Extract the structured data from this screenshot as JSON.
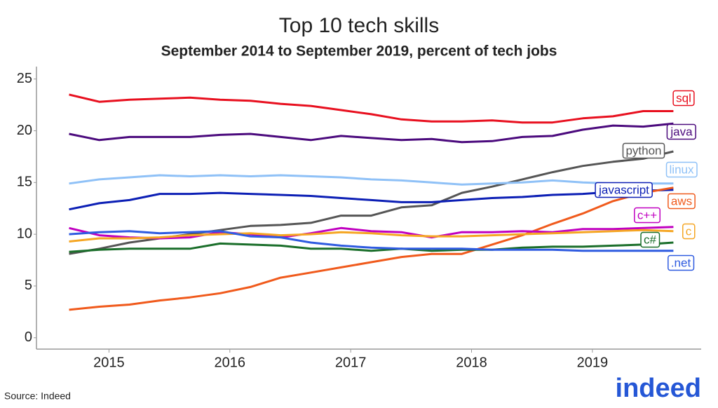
{
  "chart_data": {
    "type": "line",
    "title": "Top 10 tech skills",
    "subtitle": "September 2014 to September 2019, percent of tech jobs",
    "source": "Source: Indeed",
    "logo": "indeed",
    "x": [
      2014.67,
      2014.92,
      2015.17,
      2015.42,
      2015.67,
      2015.92,
      2016.17,
      2016.42,
      2016.67,
      2016.92,
      2017.17,
      2017.42,
      2017.67,
      2017.92,
      2018.17,
      2018.42,
      2018.67,
      2018.92,
      2019.17,
      2019.42,
      2019.67
    ],
    "xlim": [
      2014.4,
      2019.9
    ],
    "xticks": [
      2015,
      2016,
      2017,
      2018,
      2019
    ],
    "ylim": [
      -1.1,
      26.2
    ],
    "yticks": [
      0,
      5,
      10,
      15,
      20,
      25
    ],
    "grid": false,
    "series": [
      {
        "name": "sql",
        "color": "#e8101f",
        "values": [
          23.5,
          22.8,
          23.0,
          23.1,
          23.2,
          23.0,
          22.9,
          22.6,
          22.4,
          22.0,
          21.6,
          21.1,
          20.9,
          20.9,
          21.0,
          20.8,
          20.8,
          21.2,
          21.4,
          21.9,
          21.9
        ]
      },
      {
        "name": "java",
        "color": "#4b0a7d",
        "values": [
          19.7,
          19.1,
          19.4,
          19.4,
          19.4,
          19.6,
          19.7,
          19.4,
          19.1,
          19.5,
          19.3,
          19.1,
          19.2,
          18.9,
          19.0,
          19.4,
          19.5,
          20.1,
          20.5,
          20.4,
          20.7
        ]
      },
      {
        "name": "python",
        "color": "#555555",
        "values": [
          8.1,
          8.6,
          9.2,
          9.6,
          10.0,
          10.4,
          10.8,
          10.9,
          11.1,
          11.8,
          11.8,
          12.6,
          12.8,
          14.0,
          14.6,
          15.3,
          16.0,
          16.6,
          17.0,
          17.3,
          18.0
        ]
      },
      {
        "name": "linux",
        "color": "#8fc1f7",
        "values": [
          14.9,
          15.3,
          15.5,
          15.7,
          15.6,
          15.7,
          15.6,
          15.7,
          15.6,
          15.5,
          15.3,
          15.2,
          15.0,
          14.8,
          14.9,
          15.0,
          15.2,
          15.0,
          14.9,
          14.9,
          14.9
        ]
      },
      {
        "name": "javascript",
        "color": "#0c1fb5",
        "values": [
          12.4,
          13.0,
          13.3,
          13.9,
          13.9,
          14.0,
          13.9,
          13.8,
          13.7,
          13.5,
          13.3,
          13.1,
          13.1,
          13.3,
          13.5,
          13.6,
          13.8,
          13.9,
          14.1,
          14.2,
          14.3
        ]
      },
      {
        "name": "aws",
        "color": "#f05a1c",
        "values": [
          2.7,
          3.0,
          3.2,
          3.6,
          3.9,
          4.3,
          4.9,
          5.8,
          6.3,
          6.8,
          7.3,
          7.8,
          8.1,
          8.1,
          9.0,
          9.9,
          11.0,
          12.0,
          13.2,
          14.0,
          14.5
        ]
      },
      {
        "name": "c++",
        "color": "#c000c0",
        "values": [
          10.6,
          9.9,
          9.7,
          9.6,
          9.7,
          10.2,
          10.0,
          9.7,
          10.1,
          10.6,
          10.3,
          10.2,
          9.7,
          10.2,
          10.2,
          10.3,
          10.2,
          10.5,
          10.5,
          10.6,
          10.7
        ]
      },
      {
        "name": "c",
        "color": "#f5a623",
        "values": [
          9.3,
          9.6,
          9.6,
          9.7,
          9.9,
          10.0,
          10.1,
          9.9,
          10.0,
          10.2,
          10.1,
          9.9,
          9.8,
          9.8,
          9.9,
          10.0,
          10.1,
          10.2,
          10.3,
          10.4,
          10.3
        ]
      },
      {
        "name": "c#",
        "color": "#1a6e2a",
        "values": [
          8.3,
          8.5,
          8.6,
          8.6,
          8.6,
          9.1,
          9.0,
          8.9,
          8.6,
          8.6,
          8.4,
          8.6,
          8.4,
          8.5,
          8.5,
          8.7,
          8.8,
          8.8,
          8.9,
          9.0,
          9.2
        ]
      },
      {
        "name": ".net",
        "color": "#2f5be0",
        "values": [
          10.0,
          10.2,
          10.3,
          10.1,
          10.2,
          10.3,
          9.8,
          9.7,
          9.2,
          8.9,
          8.7,
          8.6,
          8.6,
          8.6,
          8.5,
          8.5,
          8.5,
          8.4,
          8.4,
          8.4,
          8.4
        ]
      }
    ]
  }
}
